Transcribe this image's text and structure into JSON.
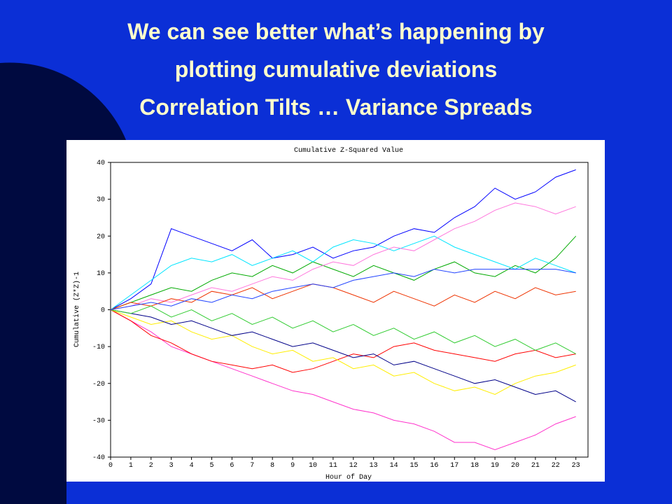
{
  "slide_title": [
    "We can see better what’s happening by",
    "plotting cumulative deviations",
    "Correlation Tilts … Variance Spreads"
  ],
  "chart_data": {
    "type": "line",
    "title": "Cumulative Z-Squared Value",
    "xlabel": "Hour of Day",
    "ylabel": "Cumulative (Z*Z)-1",
    "x": [
      0,
      1,
      2,
      3,
      4,
      5,
      6,
      7,
      8,
      9,
      10,
      11,
      12,
      13,
      14,
      15,
      16,
      17,
      18,
      19,
      20,
      21,
      22,
      23
    ],
    "xlim": [
      0,
      23.6
    ],
    "ylim": [
      -40,
      40
    ],
    "xticks": [
      0,
      1,
      2,
      3,
      4,
      5,
      6,
      7,
      8,
      9,
      10,
      11,
      12,
      13,
      14,
      15,
      16,
      17,
      18,
      19,
      20,
      21,
      22,
      23
    ],
    "yticks": [
      -40,
      -30,
      -20,
      -10,
      0,
      10,
      20,
      30,
      40
    ],
    "grid": false,
    "series": [
      {
        "color": "#0000ff",
        "values": [
          0,
          3,
          7,
          22,
          20,
          18,
          16,
          19,
          14,
          15,
          17,
          14,
          16,
          17,
          20,
          22,
          21,
          25,
          28,
          33,
          30,
          32,
          36,
          38
        ]
      },
      {
        "color": "#ff33cc",
        "values": [
          0,
          -3,
          -6,
          -10,
          -12,
          -14,
          -16,
          -18,
          -20,
          -22,
          -23,
          -25,
          -27,
          -28,
          -30,
          -31,
          -33,
          -36,
          -36,
          -38,
          -36,
          -34,
          -31,
          -29
        ]
      },
      {
        "color": "#ff0000",
        "values": [
          0,
          -3,
          -7,
          -9,
          -12,
          -14,
          -15,
          -16,
          -15,
          -17,
          -16,
          -14,
          -12,
          -13,
          -10,
          -9,
          -11,
          -12,
          -13,
          -14,
          -12,
          -11,
          -13,
          -12
        ]
      },
      {
        "color": "#00aa00",
        "values": [
          0,
          2,
          4,
          6,
          5,
          8,
          10,
          9,
          12,
          10,
          13,
          11,
          9,
          12,
          10,
          8,
          11,
          13,
          10,
          9,
          12,
          10,
          14,
          20
        ]
      },
      {
        "color": "#00e5ff",
        "values": [
          0,
          4,
          8,
          12,
          14,
          13,
          15,
          12,
          14,
          16,
          13,
          17,
          19,
          18,
          16,
          18,
          20,
          17,
          15,
          13,
          11,
          14,
          12,
          10
        ]
      },
      {
        "color": "#ffee00",
        "values": [
          0,
          -2,
          -4,
          -3,
          -6,
          -8,
          -7,
          -10,
          -12,
          -11,
          -14,
          -13,
          -16,
          -15,
          -18,
          -17,
          -20,
          -22,
          -21,
          -23,
          -20,
          -18,
          -17,
          -15
        ]
      },
      {
        "color": "#ff77dd",
        "values": [
          0,
          1,
          3,
          2,
          4,
          6,
          5,
          7,
          9,
          8,
          11,
          13,
          12,
          15,
          17,
          16,
          19,
          22,
          24,
          27,
          29,
          28,
          26,
          28
        ]
      },
      {
        "color": "#000088",
        "values": [
          0,
          -1,
          -2,
          -4,
          -3,
          -5,
          -7,
          -6,
          -8,
          -10,
          -9,
          -11,
          -13,
          -12,
          -15,
          -14,
          -16,
          -18,
          -20,
          -19,
          -21,
          -23,
          -22,
          -25
        ]
      },
      {
        "color": "#ee3300",
        "values": [
          0,
          2,
          1,
          3,
          2,
          5,
          4,
          6,
          3,
          5,
          7,
          6,
          4,
          2,
          5,
          3,
          1,
          4,
          2,
          5,
          3,
          6,
          4,
          5
        ]
      },
      {
        "color": "#33cc33",
        "values": [
          0,
          -1,
          1,
          -2,
          0,
          -3,
          -1,
          -4,
          -2,
          -5,
          -3,
          -6,
          -4,
          -7,
          -5,
          -8,
          -6,
          -9,
          -7,
          -10,
          -8,
          -11,
          -9,
          -12
        ]
      },
      {
        "color": "#2244ff",
        "values": [
          0,
          1,
          2,
          1,
          3,
          2,
          4,
          3,
          5,
          6,
          7,
          6,
          8,
          9,
          10,
          9,
          11,
          10,
          11,
          11,
          11,
          11,
          11,
          10
        ]
      }
    ]
  }
}
